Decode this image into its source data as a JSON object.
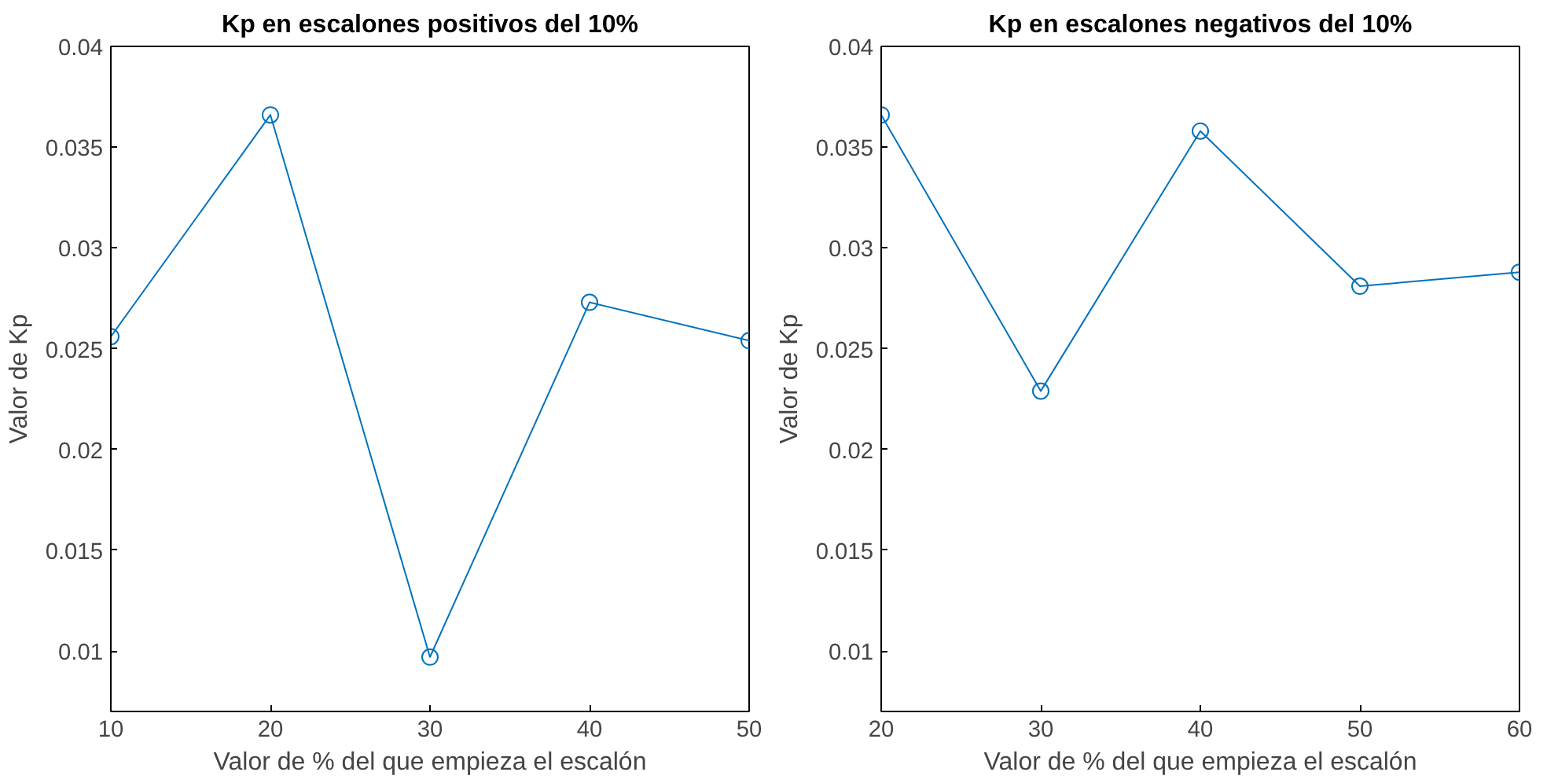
{
  "chart_data": [
    {
      "type": "line",
      "title": "Kp en escalones positivos del 10%",
      "xlabel": "Valor de % del que empieza el escalón",
      "ylabel": "Valor de Kp",
      "x": [
        10,
        20,
        30,
        40,
        50
      ],
      "series": [
        {
          "color": "#0072bd",
          "values": [
            0.0256,
            0.0366,
            0.0097,
            0.0273,
            0.0254
          ]
        }
      ],
      "xlim": [
        10,
        50
      ],
      "xticks": [
        10,
        20,
        30,
        40,
        50
      ],
      "ylim": [
        0.007,
        0.04
      ],
      "yticks": [
        0.01,
        0.015,
        0.02,
        0.025,
        0.03,
        0.035,
        0.04
      ],
      "marker": "circle"
    },
    {
      "type": "line",
      "title": "Kp en escalones negativos del 10%",
      "xlabel": "Valor de % del que empieza el escalón",
      "ylabel": "Valor de Kp",
      "x": [
        20,
        30,
        40,
        50,
        60
      ],
      "series": [
        {
          "color": "#0072bd",
          "values": [
            0.0366,
            0.0229,
            0.0358,
            0.0281,
            0.0288
          ]
        }
      ],
      "xlim": [
        20,
        60
      ],
      "xticks": [
        20,
        30,
        40,
        50,
        60
      ],
      "ylim": [
        0.007,
        0.04
      ],
      "yticks": [
        0.01,
        0.015,
        0.02,
        0.025,
        0.03,
        0.035,
        0.04
      ],
      "marker": "circle"
    }
  ]
}
